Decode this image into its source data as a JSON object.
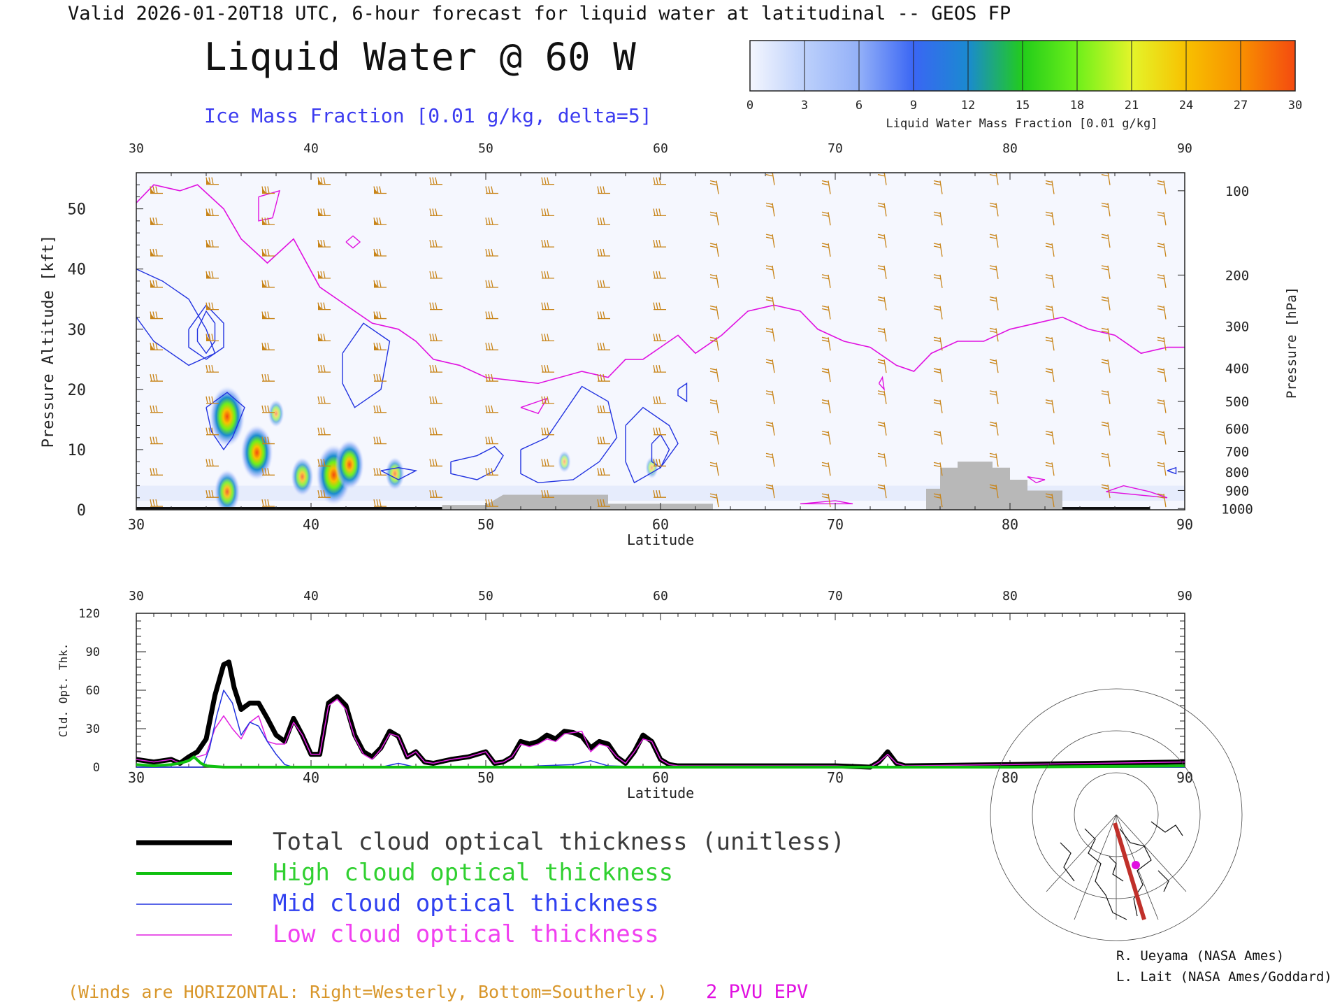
{
  "header": {
    "valid_line": "Valid 2026-01-20T18 UTC, 6-hour forecast for liquid water at latitudinal -- GEOS FP",
    "main_title": "Liquid Water @ 60 W",
    "subtitle": "Ice Mass Fraction [0.01 g/kg, delta=5]",
    "subtitle_color": "#3b3bf0"
  },
  "colorbar": {
    "ticks": [
      "0",
      "3",
      "6",
      "9",
      "12",
      "15",
      "18",
      "21",
      "24",
      "27",
      "30"
    ],
    "label": "Liquid Water Mass Fraction [0.01 g/kg]",
    "colors": [
      "#f4f6fe",
      "#bcd0fb",
      "#93b0f8",
      "#3a66f4",
      "#1a8ad0",
      "#22cc1a",
      "#6ef01a",
      "#e4f52a",
      "#f8c000",
      "#f89000",
      "#f44a10"
    ]
  },
  "annotations": {
    "winds_note": "(Winds are HORIZONTAL: Right=Westerly, Bottom=Southerly.)",
    "winds_note_color": "#d8962a",
    "epv_label": "2 PVU EPV",
    "epv_color": "#e010e0",
    "credit_1": "R. Ueyama (NASA Ames)",
    "credit_2": "L. Lait (NASA Ames/Goddard)"
  },
  "legend": [
    {
      "label": "Total cloud optical thickness (unitless)",
      "color": "#000000",
      "text_color": "#3a3a3a",
      "width": 7
    },
    {
      "label": "High cloud optical thickness",
      "color": "#10c010",
      "text_color": "#30d030",
      "width": 4
    },
    {
      "label": "Mid cloud optical thickness",
      "color": "#2233e0",
      "text_color": "#3040f0",
      "width": 1.5
    },
    {
      "label": "Low cloud optical thickness",
      "color": "#e020e0",
      "text_color": "#f040f0",
      "width": 1.5
    }
  ],
  "chart_data": [
    {
      "type": "heatmap",
      "xlabel": "Latitude",
      "ylabel": "Pressure Altitude [kft]",
      "y2label": "Pressure [hPa]",
      "x_ticks": [
        30,
        40,
        50,
        60,
        70,
        80,
        90
      ],
      "y_ticks": [
        0,
        10,
        20,
        30,
        40,
        50
      ],
      "y2_ticks": [
        100,
        200,
        300,
        400,
        500,
        600,
        700,
        800,
        900,
        1000
      ],
      "xlim": [
        30,
        90
      ],
      "ylim": [
        0,
        56
      ],
      "liquid_water_blobs": [
        {
          "lat": 35.2,
          "alt": 15.5,
          "value": 24
        },
        {
          "lat": 35.2,
          "alt": 3.0,
          "value": 15
        },
        {
          "lat": 36.9,
          "alt": 9.5,
          "value": 21
        },
        {
          "lat": 38.0,
          "alt": 16.0,
          "value": 6
        },
        {
          "lat": 39.5,
          "alt": 5.5,
          "value": 12
        },
        {
          "lat": 41.3,
          "alt": 5.8,
          "value": 24
        },
        {
          "lat": 42.2,
          "alt": 7.5,
          "value": 18
        },
        {
          "lat": 44.8,
          "alt": 6.0,
          "value": 9
        },
        {
          "lat": 54.5,
          "alt": 8.0,
          "value": 3
        },
        {
          "lat": 59.5,
          "alt": 7.0,
          "value": 3
        }
      ],
      "epv_2pvu_line": [
        [
          30,
          51
        ],
        [
          31,
          54
        ],
        [
          32.5,
          53
        ],
        [
          33.5,
          54
        ],
        [
          35,
          50
        ],
        [
          36,
          45
        ],
        [
          37.5,
          41
        ],
        [
          39,
          45
        ],
        [
          40.5,
          37
        ],
        [
          42,
          34
        ],
        [
          43.5,
          31
        ],
        [
          45,
          30
        ],
        [
          46,
          28
        ],
        [
          47,
          25
        ],
        [
          48.5,
          24
        ],
        [
          50,
          22
        ],
        [
          53,
          21
        ],
        [
          55.5,
          23
        ],
        [
          57,
          22
        ],
        [
          58,
          25
        ],
        [
          59,
          25
        ],
        [
          60,
          27
        ],
        [
          61,
          29
        ],
        [
          62,
          26
        ],
        [
          63.5,
          29
        ],
        [
          65,
          33
        ],
        [
          66.5,
          34
        ],
        [
          68,
          33
        ],
        [
          69,
          30
        ],
        [
          70.5,
          28
        ],
        [
          72,
          27
        ],
        [
          73.5,
          24
        ],
        [
          74.5,
          23
        ],
        [
          75.5,
          26
        ],
        [
          77,
          28
        ],
        [
          78.5,
          28
        ],
        [
          80,
          30
        ],
        [
          81.5,
          31
        ],
        [
          83,
          32
        ],
        [
          84.5,
          30
        ],
        [
          86,
          29
        ],
        [
          87.5,
          26
        ],
        [
          89,
          27
        ],
        [
          90,
          27
        ]
      ],
      "terrain": [
        [
          47.5,
          0.8
        ],
        [
          50,
          0.8
        ],
        [
          51,
          2.5
        ],
        [
          57,
          2.5
        ],
        [
          57,
          1.0
        ],
        [
          63,
          1.0
        ],
        [
          63,
          0
        ],
        [
          75.2,
          0
        ],
        [
          75.2,
          3.5
        ],
        [
          76,
          3.5
        ],
        [
          76,
          7
        ],
        [
          77,
          7
        ],
        [
          77,
          8
        ],
        [
          79,
          8
        ],
        [
          79,
          7
        ],
        [
          80,
          7
        ],
        [
          80,
          5
        ],
        [
          81,
          5
        ],
        [
          81,
          3.2
        ],
        [
          83,
          3.2
        ],
        [
          83,
          0
        ]
      ]
    },
    {
      "type": "line",
      "xlabel": "Latitude",
      "ylabel": "Cld. Opt. Thk.",
      "x_ticks": [
        30,
        40,
        50,
        60,
        70,
        80,
        90
      ],
      "y_ticks": [
        0,
        30,
        60,
        90,
        120
      ],
      "xlim": [
        30,
        90
      ],
      "ylim": [
        0,
        120
      ],
      "series": [
        {
          "name": "Total cloud optical thickness (unitless)",
          "x": [
            30,
            31,
            32,
            32.5,
            33,
            33.5,
            34,
            34.5,
            35,
            35.3,
            35.6,
            36,
            36.5,
            37,
            37.5,
            38,
            38.5,
            39,
            39.5,
            40,
            40.5,
            41,
            41.5,
            42,
            42.5,
            43,
            43.5,
            44,
            44.5,
            45,
            45.5,
            46,
            46.5,
            47,
            48,
            49,
            50,
            50.5,
            51,
            51.5,
            52,
            52.5,
            53,
            53.5,
            54,
            54.5,
            55,
            55.5,
            56,
            56.5,
            57,
            57.5,
            58,
            58.5,
            59,
            59.5,
            60,
            60.5,
            61,
            62,
            64,
            70,
            72,
            72.5,
            73,
            73.5,
            74,
            80,
            85,
            90
          ],
          "y": [
            6,
            4,
            6,
            3,
            8,
            12,
            22,
            56,
            80,
            82,
            62,
            45,
            50,
            50,
            38,
            25,
            20,
            38,
            25,
            10,
            10,
            50,
            55,
            48,
            25,
            12,
            8,
            15,
            28,
            24,
            8,
            12,
            4,
            3,
            6,
            8,
            12,
            3,
            4,
            8,
            20,
            18,
            20,
            25,
            22,
            28,
            27,
            24,
            15,
            20,
            18,
            8,
            3,
            12,
            25,
            20,
            6,
            2,
            1,
            1,
            1,
            1,
            0,
            4,
            12,
            3,
            1,
            2,
            3,
            4
          ]
        },
        {
          "name": "High cloud optical thickness",
          "x": [
            30,
            31,
            32,
            32.5,
            33,
            33.3,
            33.7,
            34,
            35,
            40,
            50,
            60,
            70,
            80,
            90
          ],
          "y": [
            2,
            1,
            2,
            3,
            5,
            8,
            3,
            1,
            0,
            0,
            0,
            0,
            0,
            0,
            1
          ]
        },
        {
          "name": "Mid cloud optical thickness",
          "x": [
            30,
            33.8,
            34.2,
            34.6,
            35,
            35.5,
            36,
            36.5,
            37,
            37.5,
            38,
            38.5,
            39,
            44,
            45,
            46,
            50,
            52,
            53,
            55,
            56,
            57,
            60,
            70,
            90
          ],
          "y": [
            0,
            0,
            15,
            40,
            60,
            50,
            25,
            35,
            32,
            20,
            10,
            2,
            0,
            0,
            3,
            0,
            0,
            0,
            1,
            2,
            5,
            1,
            0,
            0,
            0
          ]
        },
        {
          "name": "Low cloud optical thickness",
          "x": [
            30,
            31,
            32,
            32.5,
            33,
            33.5,
            34,
            34.5,
            35,
            35.5,
            36,
            36.5,
            37,
            37.5,
            38,
            38.5,
            39,
            39.5,
            40,
            40.5,
            41,
            41.5,
            42,
            42.5,
            43,
            43.5,
            44,
            44.5,
            45,
            45.5,
            46,
            46.5,
            47,
            48,
            49,
            50,
            50.5,
            51,
            51.5,
            52,
            52.5,
            53,
            53.5,
            54,
            54.5,
            55,
            55.5,
            56,
            56.5,
            57,
            57.5,
            58,
            58.5,
            59,
            59.5,
            60,
            60.5,
            61,
            62,
            64,
            70,
            72,
            72.5,
            73,
            73.5,
            74,
            80,
            85,
            90
          ],
          "y": [
            6,
            4,
            6,
            3,
            6,
            8,
            10,
            30,
            40,
            30,
            22,
            35,
            40,
            20,
            18,
            18,
            35,
            25,
            10,
            10,
            48,
            53,
            45,
            23,
            10,
            6,
            14,
            26,
            24,
            8,
            12,
            4,
            3,
            6,
            8,
            12,
            3,
            4,
            8,
            18,
            16,
            18,
            22,
            20,
            26,
            27,
            28,
            12,
            18,
            16,
            8,
            3,
            12,
            22,
            20,
            6,
            2,
            1,
            1,
            1,
            1,
            0,
            4,
            10,
            3,
            1,
            2,
            3,
            4
          ]
        }
      ]
    }
  ]
}
